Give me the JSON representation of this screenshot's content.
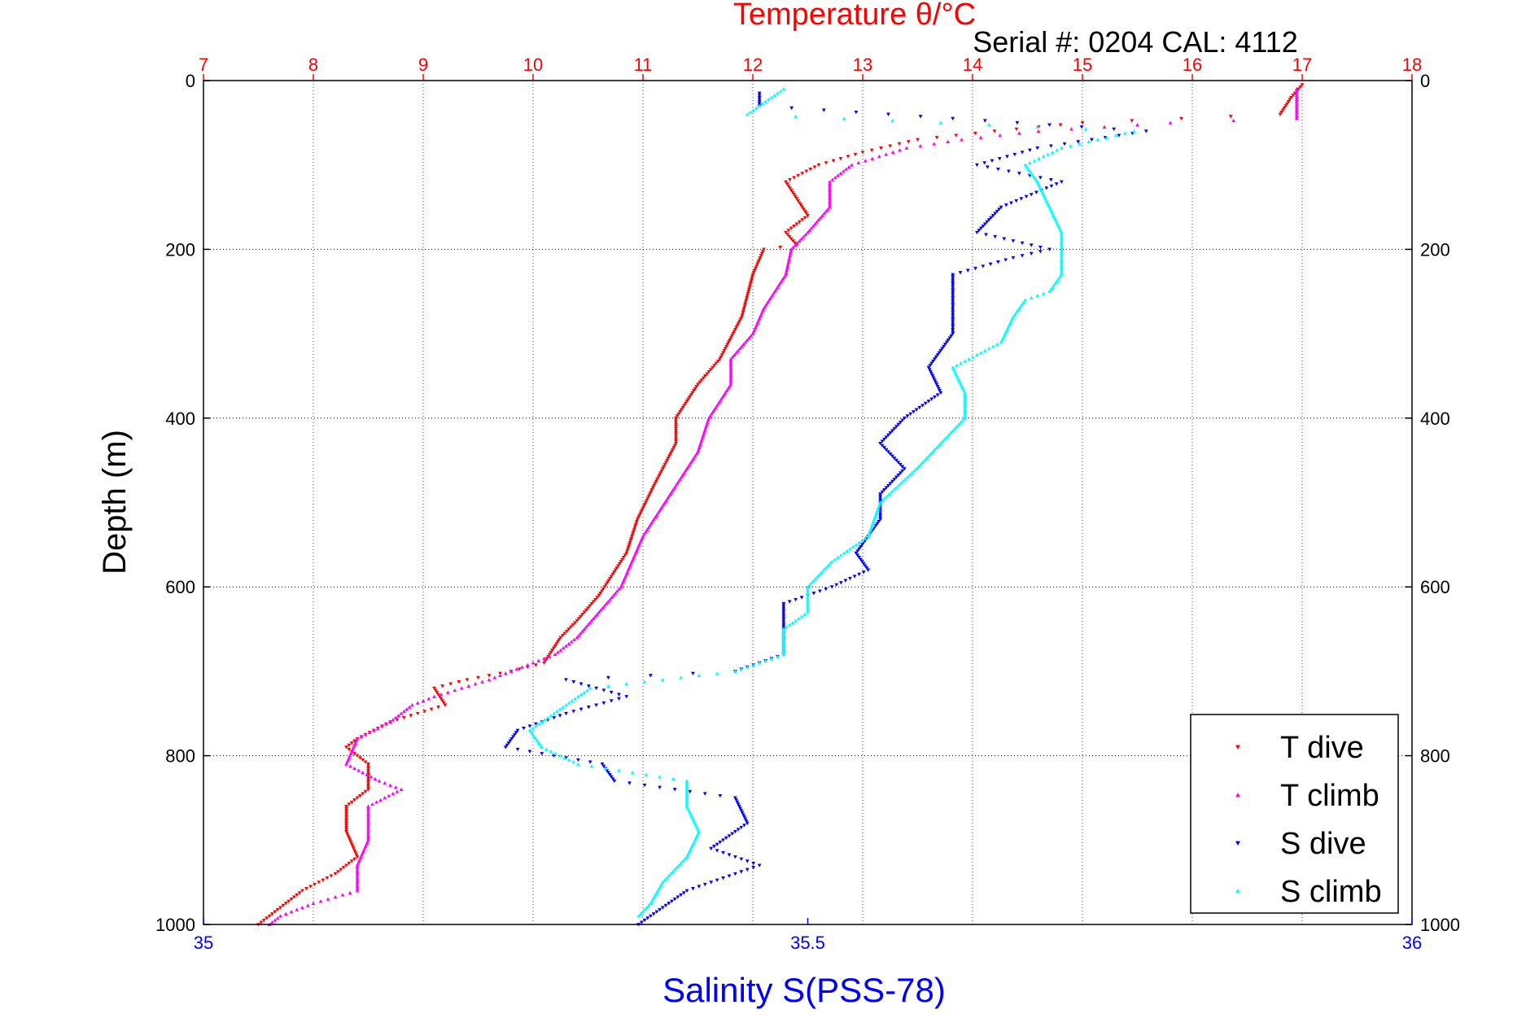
{
  "chart_data": {
    "type": "scatter",
    "title": "Temperature θ/°C",
    "annotation": "Serial #: 0204  CAL: 4112",
    "ylabel": "Depth (m)",
    "xlabel": "Salinity S(PSS-78)",
    "ylim": [
      0,
      1000
    ],
    "y_reversed": true,
    "grid": true,
    "legend_position": "bottom-right",
    "top_axis": {
      "quantity": "temperature",
      "lim": [
        7,
        18
      ],
      "ticks": [
        "7",
        "8",
        "9",
        "10",
        "11",
        "12",
        "13",
        "14",
        "15",
        "16",
        "17",
        "18"
      ],
      "color": "#ff0000"
    },
    "bottom_axis": {
      "quantity": "salinity",
      "lim": [
        35,
        36
      ],
      "ticks": [
        "35",
        "35.5",
        "36"
      ],
      "color": "#0000ff"
    },
    "y_ticks": [
      "0",
      "200",
      "400",
      "600",
      "800",
      "1000"
    ],
    "series": [
      {
        "name": "T dive",
        "axis": "top",
        "color": "#ff0000",
        "marker": "triangle-down",
        "points": [
          [
            17.0,
            5
          ],
          [
            16.9,
            20
          ],
          [
            16.8,
            40
          ],
          [
            15.0,
            50
          ],
          [
            14.2,
            60
          ],
          [
            13.5,
            70
          ],
          [
            13.0,
            85
          ],
          [
            12.6,
            100
          ],
          [
            12.3,
            120
          ],
          [
            12.4,
            140
          ],
          [
            12.5,
            160
          ],
          [
            12.3,
            180
          ],
          [
            12.4,
            195
          ],
          [
            12.1,
            200
          ],
          [
            12.0,
            230
          ],
          [
            11.9,
            280
          ],
          [
            11.7,
            330
          ],
          [
            11.5,
            360
          ],
          [
            11.3,
            400
          ],
          [
            11.3,
            430
          ],
          [
            11.1,
            480
          ],
          [
            10.95,
            520
          ],
          [
            10.85,
            560
          ],
          [
            10.75,
            580
          ],
          [
            10.6,
            610
          ],
          [
            10.4,
            640
          ],
          [
            10.25,
            660
          ],
          [
            10.1,
            690
          ],
          [
            9.8,
            700
          ],
          [
            9.4,
            710
          ],
          [
            9.1,
            720
          ],
          [
            9.2,
            740
          ],
          [
            8.7,
            760
          ],
          [
            8.4,
            780
          ],
          [
            8.3,
            790
          ],
          [
            8.5,
            810
          ],
          [
            8.5,
            840
          ],
          [
            8.3,
            860
          ],
          [
            8.3,
            890
          ],
          [
            8.4,
            920
          ],
          [
            8.2,
            940
          ],
          [
            7.9,
            960
          ],
          [
            7.7,
            980
          ],
          [
            7.5,
            1000
          ]
        ]
      },
      {
        "name": "T climb",
        "axis": "top",
        "color": "#ff00ff",
        "marker": "triangle-up",
        "points": [
          [
            16.95,
            10
          ],
          [
            16.95,
            25
          ],
          [
            16.95,
            45
          ],
          [
            15.8,
            50
          ],
          [
            14.6,
            60
          ],
          [
            13.9,
            70
          ],
          [
            13.4,
            80
          ],
          [
            12.9,
            100
          ],
          [
            12.7,
            120
          ],
          [
            12.7,
            150
          ],
          [
            12.5,
            180
          ],
          [
            12.35,
            200
          ],
          [
            12.3,
            230
          ],
          [
            12.1,
            270
          ],
          [
            12.0,
            300
          ],
          [
            11.8,
            330
          ],
          [
            11.8,
            360
          ],
          [
            11.6,
            400
          ],
          [
            11.5,
            440
          ],
          [
            11.3,
            480
          ],
          [
            11.1,
            520
          ],
          [
            11.0,
            540
          ],
          [
            10.9,
            570
          ],
          [
            10.8,
            600
          ],
          [
            10.6,
            630
          ],
          [
            10.4,
            660
          ],
          [
            10.2,
            680
          ],
          [
            10.0,
            690
          ],
          [
            9.6,
            710
          ],
          [
            9.1,
            730
          ],
          [
            8.9,
            740
          ],
          [
            8.7,
            760
          ],
          [
            8.4,
            780
          ],
          [
            8.3,
            810
          ],
          [
            8.6,
            830
          ],
          [
            8.8,
            840
          ],
          [
            8.5,
            860
          ],
          [
            8.5,
            900
          ],
          [
            8.4,
            930
          ],
          [
            8.4,
            960
          ],
          [
            8.0,
            975
          ],
          [
            7.7,
            990
          ],
          [
            7.6,
            1000
          ]
        ]
      },
      {
        "name": "S dive",
        "axis": "bottom",
        "color": "#0000ff",
        "marker": "triangle-down",
        "points": [
          [
            35.46,
            15
          ],
          [
            35.46,
            30
          ],
          [
            35.78,
            60
          ],
          [
            35.69,
            80
          ],
          [
            35.64,
            100
          ],
          [
            35.71,
            120
          ],
          [
            35.66,
            150
          ],
          [
            35.64,
            180
          ],
          [
            35.7,
            200
          ],
          [
            35.67,
            210
          ],
          [
            35.62,
            230
          ],
          [
            35.62,
            270
          ],
          [
            35.62,
            300
          ],
          [
            35.6,
            340
          ],
          [
            35.61,
            370
          ],
          [
            35.58,
            400
          ],
          [
            35.56,
            430
          ],
          [
            35.58,
            460
          ],
          [
            35.56,
            490
          ],
          [
            35.56,
            520
          ],
          [
            35.54,
            560
          ],
          [
            35.55,
            580
          ],
          [
            35.52,
            600
          ],
          [
            35.48,
            620
          ],
          [
            35.48,
            650
          ],
          [
            35.48,
            680
          ],
          [
            35.44,
            700
          ],
          [
            35.3,
            710
          ],
          [
            35.35,
            730
          ],
          [
            35.3,
            750
          ],
          [
            35.26,
            770
          ],
          [
            35.25,
            790
          ],
          [
            35.33,
            810
          ],
          [
            35.34,
            830
          ],
          [
            35.44,
            850
          ],
          [
            35.45,
            880
          ],
          [
            35.42,
            910
          ],
          [
            35.46,
            930
          ],
          [
            35.4,
            960
          ],
          [
            35.38,
            980
          ],
          [
            35.36,
            1000
          ]
        ]
      },
      {
        "name": "S climb",
        "axis": "bottom",
        "color": "#00ffff",
        "marker": "triangle-up",
        "points": [
          [
            35.48,
            10
          ],
          [
            35.47,
            20
          ],
          [
            35.45,
            40
          ],
          [
            35.77,
            60
          ],
          [
            35.71,
            80
          ],
          [
            35.68,
            100
          ],
          [
            35.69,
            120
          ],
          [
            35.7,
            150
          ],
          [
            35.71,
            180
          ],
          [
            35.71,
            200
          ],
          [
            35.71,
            230
          ],
          [
            35.7,
            250
          ],
          [
            35.68,
            260
          ],
          [
            35.67,
            280
          ],
          [
            35.66,
            310
          ],
          [
            35.62,
            340
          ],
          [
            35.63,
            370
          ],
          [
            35.63,
            400
          ],
          [
            35.61,
            430
          ],
          [
            35.59,
            460
          ],
          [
            35.56,
            500
          ],
          [
            35.55,
            540
          ],
          [
            35.52,
            570
          ],
          [
            35.5,
            600
          ],
          [
            35.5,
            630
          ],
          [
            35.48,
            650
          ],
          [
            35.48,
            680
          ],
          [
            35.44,
            700
          ],
          [
            35.32,
            720
          ],
          [
            35.3,
            740
          ],
          [
            35.27,
            770
          ],
          [
            35.28,
            790
          ],
          [
            35.31,
            810
          ],
          [
            35.4,
            830
          ],
          [
            35.4,
            860
          ],
          [
            35.41,
            890
          ],
          [
            35.4,
            920
          ],
          [
            35.38,
            950
          ],
          [
            35.37,
            975
          ],
          [
            35.36,
            990
          ]
        ]
      }
    ]
  }
}
